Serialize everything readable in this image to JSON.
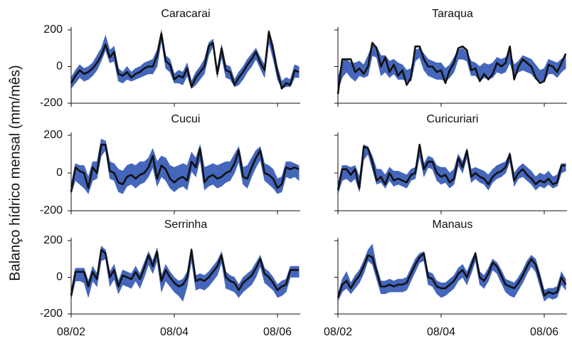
{
  "chart_data": {
    "type": "band-line",
    "ylabel": "Balanço hídrico mensal (mm/mês)",
    "categories": [
      "08/02",
      null,
      null,
      null,
      null,
      null,
      null,
      null,
      null,
      null,
      null,
      null,
      null,
      null,
      null,
      null,
      null,
      null,
      null,
      null,
      null,
      null,
      null,
      null,
      "08/04",
      null,
      null,
      null,
      null,
      null,
      null,
      null,
      null,
      null,
      null,
      null,
      null,
      null,
      null,
      null,
      null,
      null,
      null,
      null,
      null,
      null,
      null,
      null,
      "08/06",
      null,
      null,
      null,
      null,
      null
    ],
    "ylim": [
      -200,
      200
    ],
    "yticks": [
      -200,
      0,
      200
    ],
    "band_color": "#4466bb",
    "line_color": "#111111",
    "panels": [
      {
        "title": "Caracarai",
        "values": [
          -90,
          -50,
          -20,
          -40,
          -30,
          -10,
          20,
          60,
          120,
          50,
          80,
          -40,
          -50,
          -30,
          -60,
          -40,
          -30,
          -10,
          0,
          0,
          60,
          180,
          30,
          10,
          -70,
          -50,
          -60,
          -10,
          -110,
          -60,
          -30,
          0,
          110,
          130,
          -40,
          100,
          -20,
          -30,
          -100,
          -60,
          -30,
          10,
          40,
          80,
          20,
          -20,
          190,
          90,
          -30,
          -120,
          -90,
          -100,
          -20,
          -30
        ],
        "band_low": [
          -120,
          -90,
          -60,
          -80,
          -70,
          -50,
          -20,
          30,
          90,
          20,
          30,
          -80,
          -90,
          -70,
          -80,
          -70,
          -60,
          -50,
          -40,
          -40,
          0,
          140,
          -10,
          -30,
          -90,
          -90,
          -100,
          -50,
          -120,
          -100,
          -70,
          -40,
          60,
          110,
          -60,
          50,
          -60,
          -70,
          -110,
          -100,
          -70,
          -30,
          0,
          40,
          -10,
          -60,
          130,
          40,
          -70,
          -120,
          -110,
          -110,
          -60,
          -60
        ],
        "band_high": [
          -60,
          -20,
          10,
          -10,
          0,
          20,
          60,
          100,
          170,
          90,
          110,
          -10,
          -30,
          0,
          -30,
          -10,
          0,
          20,
          30,
          40,
          90,
          200,
          60,
          40,
          -40,
          -20,
          -30,
          20,
          -80,
          -30,
          0,
          40,
          130,
          150,
          -10,
          120,
          10,
          0,
          -70,
          -30,
          0,
          40,
          70,
          100,
          50,
          10,
          200,
          120,
          0,
          -80,
          -60,
          -70,
          10,
          0
        ]
      },
      {
        "title": "Taraqua",
        "values": [
          -150,
          40,
          40,
          40,
          -30,
          -10,
          -40,
          0,
          130,
          100,
          0,
          50,
          -30,
          10,
          -50,
          -20,
          -100,
          -60,
          110,
          110,
          40,
          0,
          0,
          -30,
          -20,
          -90,
          -20,
          20,
          100,
          110,
          90,
          -20,
          -10,
          -80,
          -40,
          -70,
          -40,
          20,
          0,
          20,
          110,
          -70,
          0,
          40,
          20,
          0,
          -60,
          -90,
          -80,
          10,
          0,
          -30,
          20,
          70
        ],
        "band_low": [
          -130,
          -60,
          -30,
          -60,
          -80,
          -50,
          -60,
          -50,
          60,
          50,
          -50,
          -30,
          -60,
          -40,
          -70,
          -70,
          -80,
          -80,
          30,
          50,
          -20,
          -50,
          -60,
          -70,
          -70,
          -80,
          -60,
          -30,
          40,
          40,
          30,
          -50,
          -50,
          -80,
          -60,
          -70,
          -60,
          -30,
          -40,
          -30,
          20,
          -60,
          -30,
          -20,
          -30,
          -40,
          -70,
          -80,
          -80,
          -40,
          -40,
          -60,
          -30,
          -10
        ],
        "band_high": [
          -60,
          30,
          40,
          20,
          20,
          30,
          10,
          60,
          120,
          110,
          60,
          60,
          30,
          40,
          20,
          10,
          -20,
          -10,
          90,
          100,
          70,
          40,
          30,
          20,
          20,
          -10,
          10,
          50,
          90,
          100,
          80,
          30,
          20,
          0,
          20,
          10,
          20,
          50,
          40,
          50,
          80,
          10,
          30,
          60,
          50,
          40,
          10,
          -20,
          -10,
          40,
          30,
          20,
          40,
          60
        ]
      },
      {
        "title": "Cucui",
        "values": [
          -100,
          30,
          10,
          0,
          -80,
          30,
          0,
          150,
          150,
          10,
          0,
          -50,
          -60,
          -20,
          -10,
          -30,
          -10,
          0,
          30,
          90,
          -30,
          40,
          20,
          -30,
          -50,
          -30,
          -20,
          -40,
          60,
          30,
          130,
          -50,
          -20,
          -10,
          -30,
          -20,
          0,
          10,
          50,
          120,
          -20,
          -30,
          30,
          80,
          120,
          0,
          -10,
          -30,
          -80,
          -60,
          30,
          20,
          30,
          20
        ],
        "band_low": [
          -110,
          -40,
          -60,
          -80,
          -110,
          -40,
          -30,
          90,
          120,
          -30,
          -40,
          -100,
          -110,
          -70,
          -60,
          -80,
          -60,
          -50,
          -20,
          30,
          -70,
          -20,
          -40,
          -80,
          -100,
          -80,
          -70,
          -90,
          10,
          -20,
          70,
          -90,
          -70,
          -60,
          -80,
          -70,
          -50,
          -40,
          0,
          60,
          -60,
          -80,
          -20,
          30,
          70,
          -40,
          -60,
          -80,
          -110,
          -100,
          -20,
          -30,
          -20,
          -40
        ],
        "band_high": [
          -60,
          50,
          40,
          40,
          -20,
          60,
          60,
          180,
          170,
          60,
          50,
          20,
          10,
          40,
          50,
          40,
          60,
          60,
          80,
          130,
          60,
          90,
          80,
          40,
          30,
          40,
          50,
          40,
          110,
          80,
          150,
          30,
          40,
          50,
          40,
          50,
          60,
          60,
          100,
          140,
          30,
          40,
          80,
          120,
          140,
          50,
          40,
          20,
          -30,
          -20,
          60,
          60,
          50,
          40
        ]
      },
      {
        "title": "Curicuriari",
        "values": [
          -90,
          20,
          20,
          -10,
          20,
          -80,
          140,
          130,
          60,
          -40,
          -20,
          -60,
          0,
          -40,
          -30,
          -40,
          -50,
          -10,
          0,
          150,
          20,
          60,
          60,
          0,
          -20,
          -10,
          -50,
          -30,
          80,
          30,
          120,
          -20,
          0,
          -20,
          -30,
          -60,
          -20,
          0,
          10,
          30,
          100,
          -40,
          0,
          20,
          -10,
          -30,
          -60,
          -40,
          -50,
          -30,
          -60,
          -50,
          40,
          40
        ],
        "band_low": [
          -110,
          -40,
          -30,
          -50,
          -30,
          -100,
          70,
          100,
          20,
          -60,
          -50,
          -80,
          -40,
          -70,
          -60,
          -70,
          -80,
          -40,
          -30,
          90,
          -20,
          30,
          20,
          -40,
          -60,
          -50,
          -80,
          -60,
          40,
          0,
          80,
          -50,
          -30,
          -50,
          -60,
          -90,
          -50,
          -30,
          -20,
          0,
          60,
          -70,
          -30,
          -20,
          -40,
          -60,
          -90,
          -70,
          -80,
          -60,
          -80,
          -70,
          0,
          10
        ],
        "band_high": [
          -60,
          40,
          40,
          30,
          40,
          -20,
          150,
          140,
          90,
          20,
          20,
          -10,
          30,
          10,
          10,
          0,
          -10,
          20,
          30,
          150,
          50,
          90,
          80,
          40,
          30,
          30,
          0,
          20,
          100,
          60,
          130,
          20,
          30,
          20,
          10,
          -10,
          20,
          40,
          50,
          60,
          110,
          0,
          30,
          50,
          30,
          10,
          -20,
          0,
          -10,
          10,
          -20,
          -10,
          50,
          50
        ]
      },
      {
        "title": "Serrinha",
        "values": [
          -100,
          30,
          30,
          30,
          -50,
          30,
          -10,
          150,
          130,
          0,
          40,
          -50,
          10,
          0,
          -10,
          30,
          -10,
          50,
          120,
          60,
          140,
          -20,
          40,
          0,
          -30,
          -50,
          -40,
          0,
          150,
          -20,
          -10,
          -20,
          0,
          30,
          60,
          120,
          0,
          -20,
          -30,
          -70,
          -30,
          -10,
          10,
          50,
          100,
          20,
          0,
          -30,
          -70,
          -50,
          -40,
          40,
          40,
          40
        ],
        "band_low": [
          -120,
          -20,
          -20,
          -30,
          -110,
          -20,
          -50,
          90,
          100,
          -50,
          -10,
          -90,
          -40,
          -50,
          -60,
          -20,
          -60,
          0,
          70,
          20,
          90,
          -80,
          -20,
          -50,
          -80,
          -100,
          -130,
          -50,
          90,
          -70,
          -60,
          -70,
          -50,
          -20,
          10,
          80,
          -60,
          -70,
          -80,
          -110,
          -80,
          -60,
          -40,
          0,
          60,
          -30,
          -50,
          -70,
          -110,
          -100,
          -80,
          0,
          0,
          0
        ],
        "band_high": [
          -70,
          50,
          50,
          50,
          -20,
          60,
          20,
          170,
          150,
          30,
          70,
          -20,
          40,
          30,
          20,
          60,
          20,
          80,
          140,
          90,
          160,
          10,
          70,
          30,
          0,
          -20,
          -10,
          30,
          160,
          10,
          20,
          10,
          30,
          60,
          90,
          140,
          30,
          10,
          0,
          -40,
          0,
          20,
          40,
          80,
          120,
          50,
          30,
          0,
          -40,
          -20,
          -10,
          60,
          60,
          60
        ]
      },
      {
        "title": "Manaus",
        "values": [
          -110,
          -40,
          -20,
          -60,
          -20,
          10,
          60,
          120,
          110,
          30,
          -50,
          -50,
          -40,
          -50,
          -40,
          -40,
          -30,
          20,
          70,
          110,
          130,
          0,
          -10,
          -50,
          -60,
          -60,
          -40,
          -20,
          20,
          40,
          0,
          60,
          130,
          0,
          -20,
          20,
          80,
          60,
          10,
          -40,
          -50,
          -60,
          -30,
          10,
          60,
          100,
          70,
          -10,
          -100,
          -80,
          -90,
          -80,
          0,
          -40
        ],
        "band_low": [
          -130,
          -80,
          -60,
          -90,
          -60,
          -30,
          20,
          90,
          70,
          -10,
          -90,
          -90,
          -80,
          -80,
          -80,
          -80,
          -70,
          -20,
          30,
          80,
          90,
          -40,
          -50,
          -90,
          -110,
          -100,
          -80,
          -60,
          -20,
          0,
          -40,
          20,
          90,
          -40,
          -60,
          -20,
          40,
          20,
          -30,
          -80,
          -100,
          -110,
          -70,
          -30,
          20,
          60,
          30,
          -50,
          -130,
          -110,
          -120,
          -110,
          -40,
          -70
        ],
        "band_high": [
          -90,
          -10,
          30,
          -30,
          10,
          40,
          90,
          150,
          180,
          60,
          -20,
          -20,
          -10,
          -20,
          -10,
          -10,
          0,
          50,
          100,
          130,
          140,
          30,
          20,
          -20,
          -30,
          -30,
          -10,
          10,
          50,
          70,
          30,
          90,
          140,
          30,
          10,
          50,
          100,
          80,
          40,
          -10,
          -20,
          -30,
          0,
          40,
          90,
          120,
          100,
          20,
          -70,
          -60,
          -60,
          -50,
          30,
          -10
        ]
      }
    ]
  }
}
